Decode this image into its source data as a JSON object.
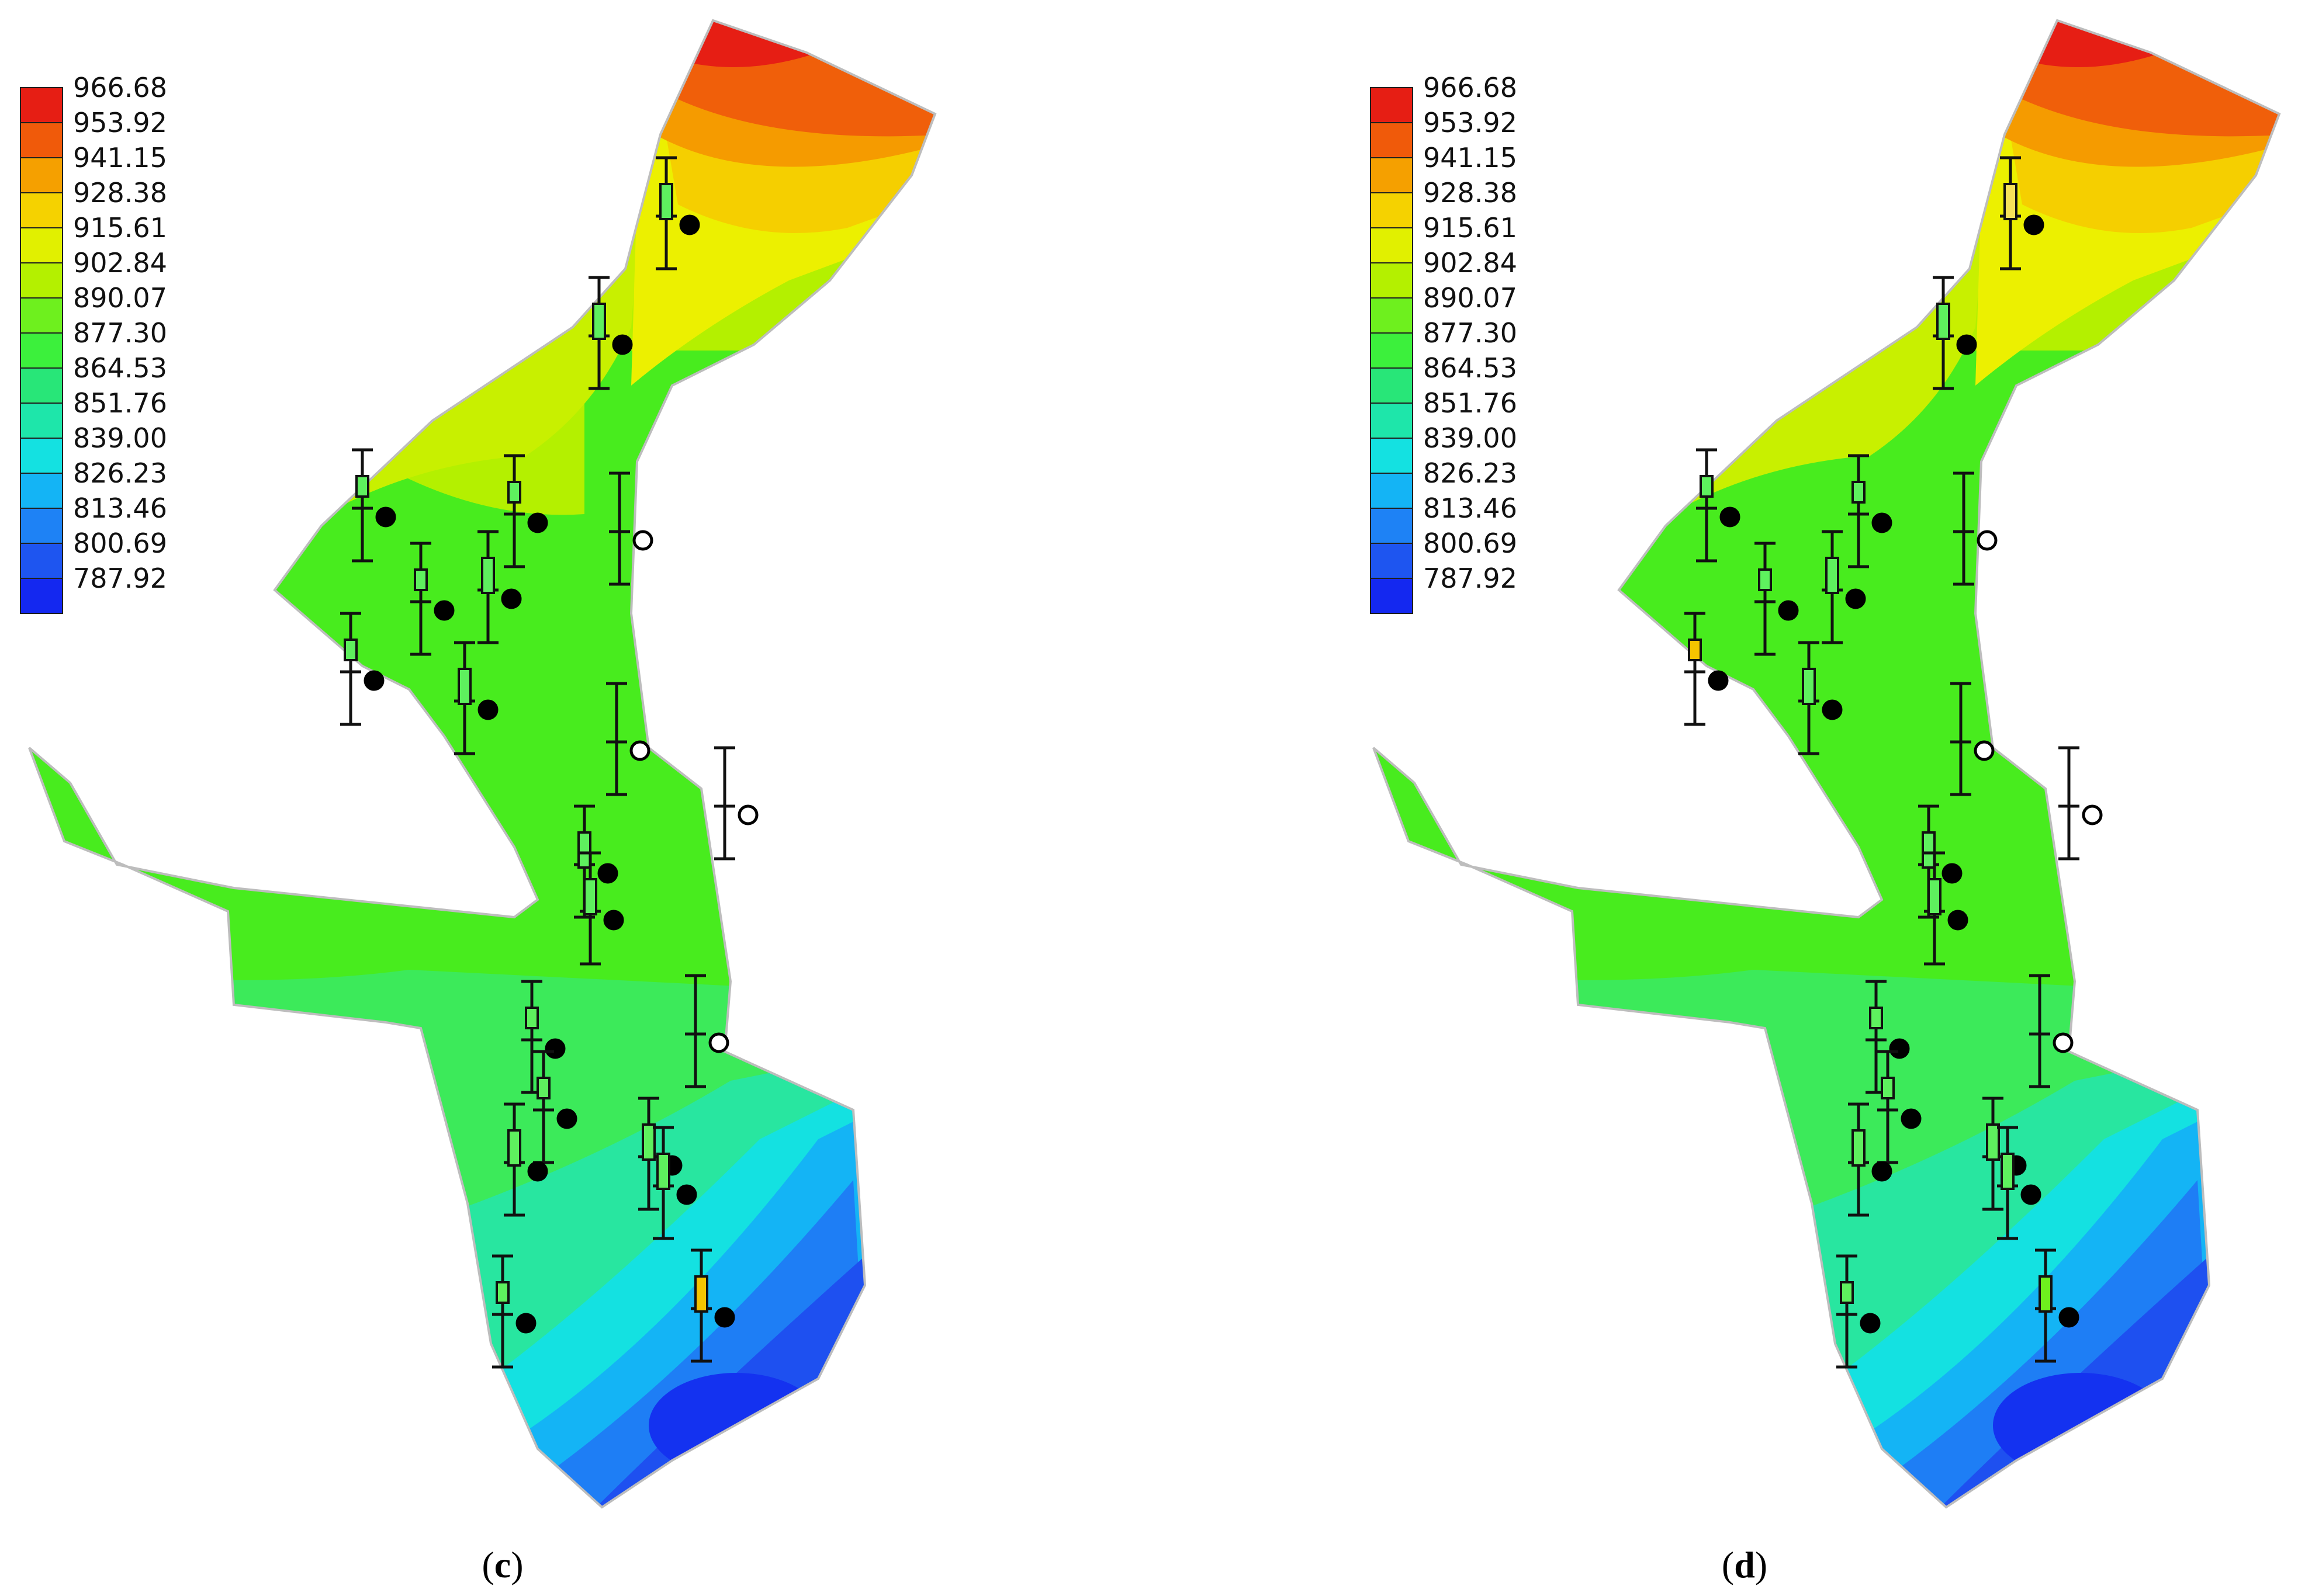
{
  "legend": {
    "values": [
      "966.68",
      "953.92",
      "941.15",
      "928.38",
      "915.61",
      "902.84",
      "890.07",
      "877.30",
      "864.53",
      "851.76",
      "839.00",
      "826.23",
      "813.46",
      "800.69",
      "787.92"
    ],
    "colors": [
      "#e61e14",
      "#f05a0a",
      "#f5a000",
      "#f5d200",
      "#e1f000",
      "#b4f000",
      "#6ef01e",
      "#3cf03c",
      "#28e678",
      "#1ee6aa",
      "#14e1e1",
      "#14b4f5",
      "#1e82f5",
      "#1e55f0",
      "#1428f0"
    ]
  },
  "panels": [
    {
      "caption": {
        "open": "(",
        "letter": "c",
        "close": ")"
      },
      "colors": {
        "red": "#e61e14",
        "orange": "#f5a000",
        "yellow": "#f0e600",
        "lime": "#b4f000",
        "green": "#50ee1e",
        "teal": "#28e6a0",
        "cyan": "#14e1e1",
        "blue": "#1e70f5",
        "deep_blue": "#1432f0"
      }
    },
    {
      "caption": {
        "open": "(",
        "letter": "d",
        "close": ")"
      },
      "colors": {
        "red": "#e61e14",
        "orange": "#f5a000",
        "yellow": "#f0e600",
        "lime": "#b4f000",
        "green": "#50ee1e",
        "teal": "#28e6a0",
        "cyan": "#14e1e1",
        "blue": "#1e70f5",
        "deep_blue": "#1432f0"
      }
    }
  ]
}
